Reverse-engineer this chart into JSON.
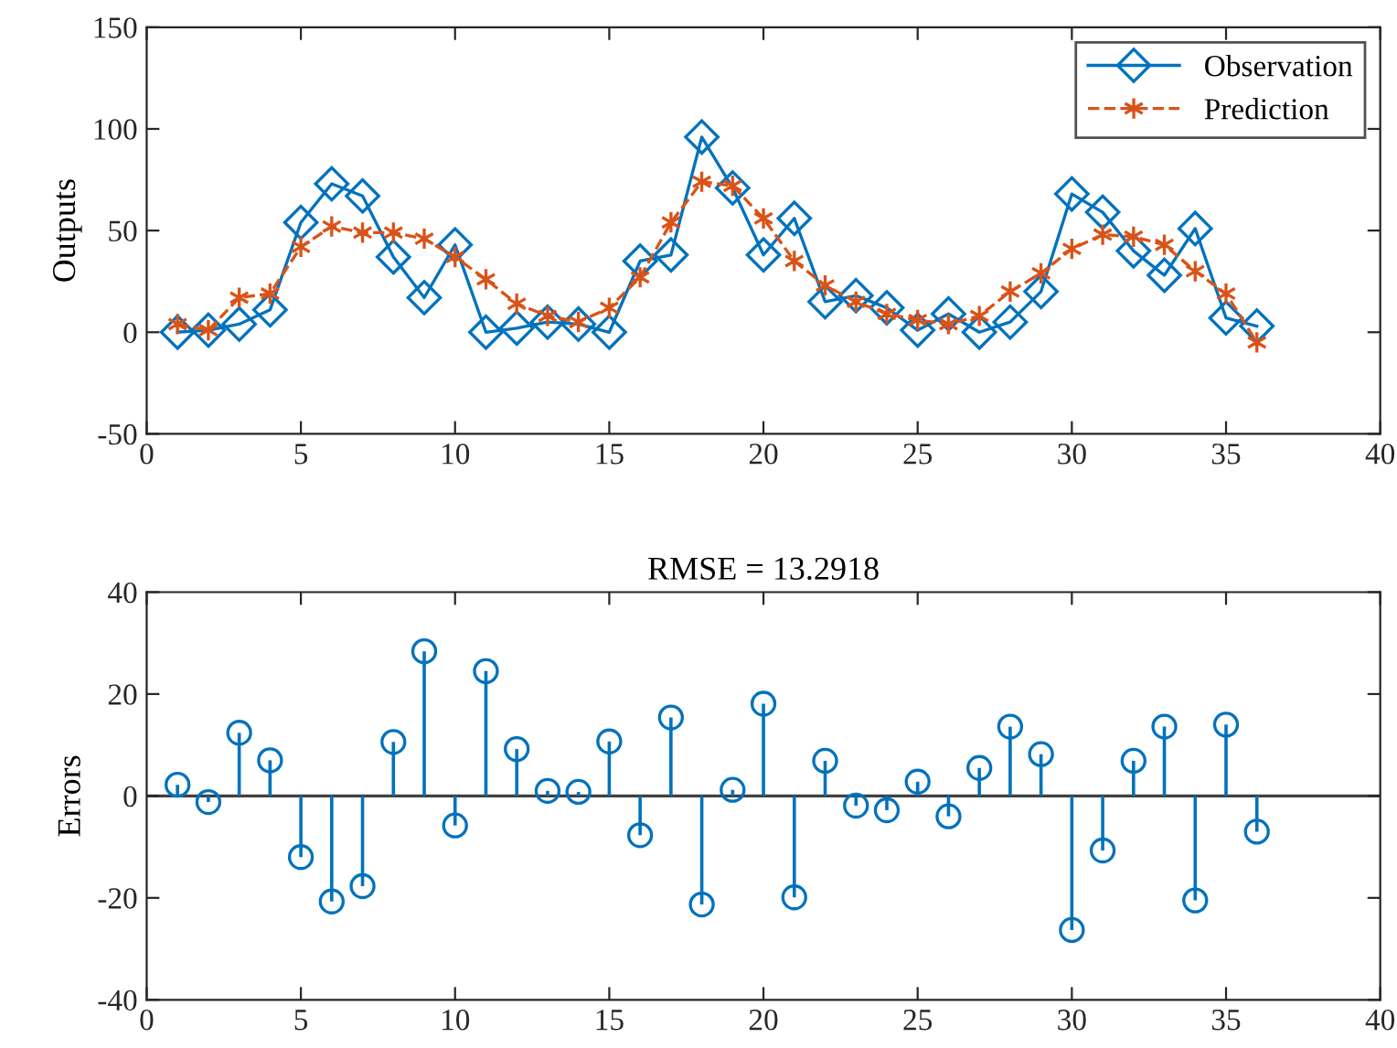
{
  "chart_data": [
    {
      "type": "line",
      "ylabel": "Outputs",
      "xlim": [
        0,
        40
      ],
      "xticks": [
        0,
        5,
        10,
        15,
        20,
        25,
        30,
        35,
        40
      ],
      "ylim": [
        -50,
        150
      ],
      "yticks": [
        -50,
        0,
        50,
        100,
        150
      ],
      "grid": false,
      "legend": "top right",
      "x": [
        1,
        2,
        3,
        4,
        5,
        6,
        7,
        8,
        9,
        10,
        11,
        12,
        13,
        14,
        15,
        16,
        17,
        18,
        19,
        20,
        21,
        22,
        23,
        24,
        25,
        26,
        27,
        28,
        29,
        30,
        31,
        32,
        33,
        34,
        35,
        36
      ],
      "series": [
        {
          "name": "Observation",
          "color": "#0072bd",
          "marker": "diamond",
          "line_style": "solid",
          "values": [
            0,
            1,
            4,
            11,
            54,
            73,
            67,
            37,
            17,
            43,
            0,
            2,
            5,
            4,
            0,
            35,
            38,
            96,
            71,
            38,
            56,
            15,
            18,
            12,
            1,
            9,
            0,
            5,
            20,
            68,
            59,
            40,
            28,
            51,
            7,
            3
          ]
        },
        {
          "name": "Prediction",
          "color": "#d95319",
          "marker": "cross",
          "line_style": "dashed",
          "values": [
            4,
            1,
            17,
            19,
            42,
            52,
            49,
            49,
            46,
            37,
            26,
            14,
            8,
            5,
            12,
            27,
            54,
            74,
            72,
            56,
            35,
            23,
            15,
            9,
            6,
            4,
            8,
            20,
            29,
            41,
            48,
            47,
            43,
            30,
            19,
            -5
          ]
        }
      ]
    },
    {
      "type": "lollipop",
      "title": "RMSE = 13.2918",
      "ylabel": "Errors",
      "xlim": [
        0,
        40
      ],
      "xticks": [
        0,
        5,
        10,
        15,
        20,
        25,
        30,
        35,
        40
      ],
      "ylim": [
        -40,
        40
      ],
      "yticks": [
        -40,
        -20,
        0,
        20,
        40
      ],
      "grid": false,
      "marker": "circle",
      "x": [
        1,
        2,
        3,
        4,
        5,
        6,
        7,
        8,
        9,
        10,
        11,
        12,
        13,
        14,
        15,
        16,
        17,
        18,
        19,
        20,
        21,
        22,
        23,
        24,
        25,
        26,
        27,
        28,
        29,
        30,
        31,
        32,
        33,
        34,
        35,
        36
      ],
      "series": [
        {
          "color": "#0072bd",
          "values": [
            2.2,
            -1.2,
            12.4,
            7,
            -12,
            -20.7,
            -17.7,
            10.6,
            28.4,
            -5.8,
            24.5,
            9.2,
            1,
            0.8,
            10.7,
            -7.7,
            15.4,
            -21.3,
            1.2,
            18.1,
            -19.9,
            6.9,
            -1.9,
            -2.8,
            2.8,
            -4,
            5.5,
            13.6,
            8.2,
            -26.3,
            -10.7,
            6.9,
            13.6,
            -20.5,
            14,
            -7
          ]
        }
      ],
      "ref_lines": [
        {
          "axis": "y",
          "value": 0,
          "color": "#404040"
        }
      ]
    }
  ]
}
